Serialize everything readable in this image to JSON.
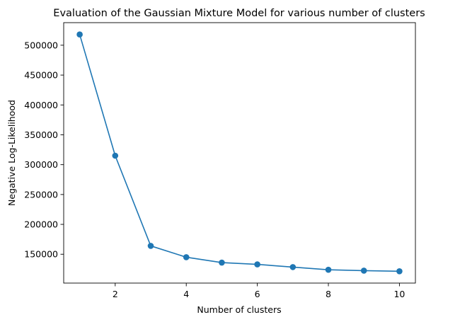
{
  "chart_data": {
    "type": "line",
    "title": "Evaluation of the Gaussian Mixture Model for various number of clusters",
    "xlabel": "Number of clusters",
    "ylabel": "Negative Log-Likelihood",
    "x": [
      1,
      2,
      3,
      4,
      5,
      6,
      7,
      8,
      9,
      10
    ],
    "series": [
      {
        "values": [
          518000,
          315000,
          164000,
          145000,
          136000,
          133000,
          128500,
          124000,
          122500,
          121500
        ],
        "color": "#1f77b4",
        "marker": "circle"
      }
    ],
    "xlim": [
      0.55,
      10.45
    ],
    "ylim": [
      101700,
      537800
    ],
    "xticks": [
      2,
      4,
      6,
      8,
      10
    ],
    "xtick_labels": [
      "2",
      "4",
      "6",
      "8",
      "10"
    ],
    "yticks": [
      150000,
      200000,
      250000,
      300000,
      350000,
      400000,
      450000,
      500000
    ],
    "ytick_labels": [
      "150000",
      "200000",
      "250000",
      "300000",
      "350000",
      "400000",
      "450000",
      "500000"
    ],
    "grid": false,
    "legend": "none"
  }
}
